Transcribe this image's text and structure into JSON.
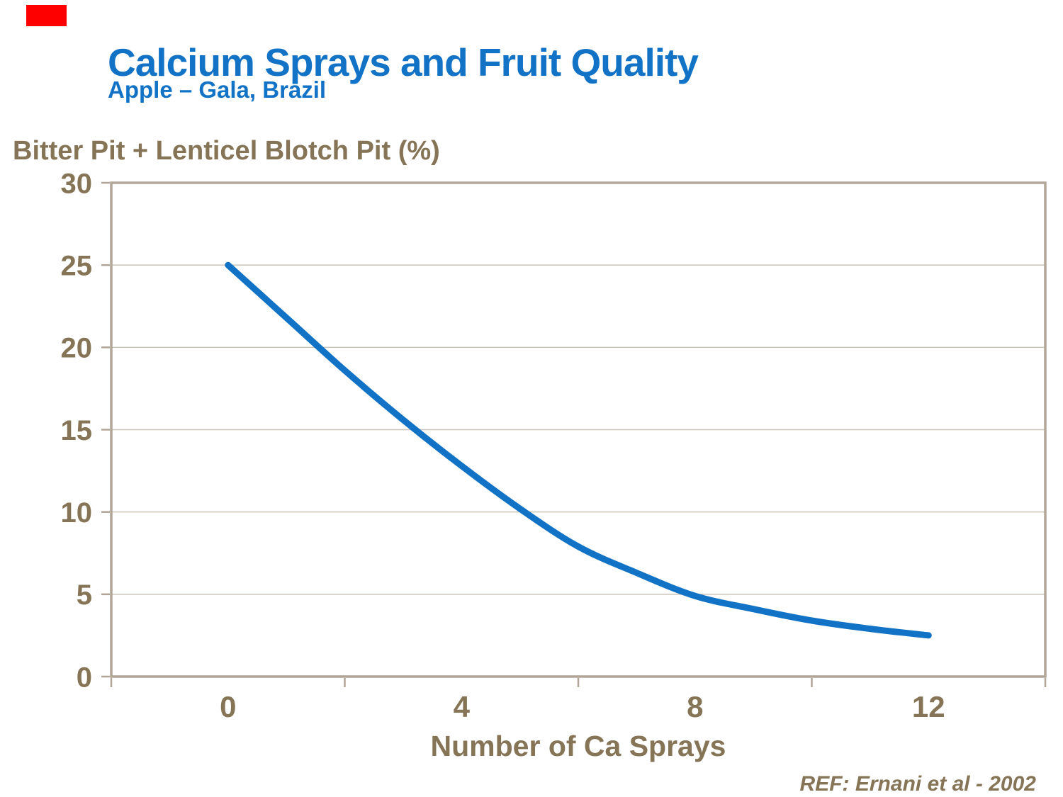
{
  "page": {
    "background": "#FFFFFF"
  },
  "decorations": {
    "red_accent_color": "#FF0000"
  },
  "header": {
    "title": "Calcium Sprays and Fruit Quality",
    "subtitle": "Apple – Gala, Brazil",
    "title_color": "#1273C6"
  },
  "footer": {
    "reference": "REF: Ernani et al - 2002"
  },
  "chart_data": {
    "type": "line",
    "title": "Calcium Sprays and Fruit Quality",
    "subtitle": "Apple – Gala, Brazil",
    "xlabel": "Number of Ca Sprays",
    "ylabel": "Bitter Pit + Lenticel Blotch Pit (%)",
    "xlim": [
      -2,
      14
    ],
    "ylim": [
      0,
      30
    ],
    "x_tick_labels": [
      0,
      4,
      8,
      12
    ],
    "x_tick_marks": [
      -2,
      2,
      6,
      10,
      14
    ],
    "y_ticks": [
      0,
      5,
      10,
      15,
      20,
      25,
      30
    ],
    "grid": "horizontal",
    "legend": "none",
    "series": [
      {
        "name": "Bitter Pit + Lenticel Blotch Pit (%)",
        "x": [
          0,
          1,
          2,
          3,
          4,
          5,
          6,
          7,
          8,
          9,
          10,
          11,
          12
        ],
        "y": [
          25.0,
          21.8,
          18.6,
          15.6,
          12.8,
          10.2,
          7.9,
          6.3,
          4.9,
          4.1,
          3.4,
          2.9,
          2.5
        ],
        "color": "#1273C6",
        "line_width": 9
      }
    ],
    "colors": {
      "axis_frame": "#B1A597",
      "gridline": "#CCC3B7",
      "tick_text": "#867456"
    },
    "annotations": [
      "REF: Ernani et al - 2002"
    ]
  }
}
